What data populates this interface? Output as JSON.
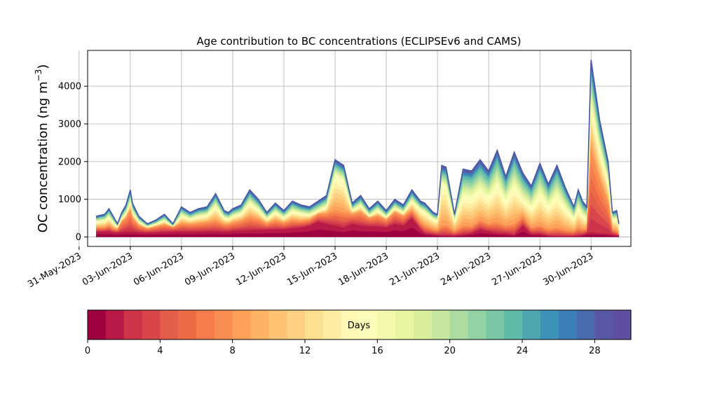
{
  "chart_data": {
    "type": "area",
    "title": "Age contribution to BC concentrations (ECLIPSEv6 and CAMS)",
    "ylabel_text": "OC concentration (ng m",
    "ylabel_sup": "−3",
    "ylabel_close": ")",
    "xlabel": "",
    "ylim": [
      -250,
      4950
    ],
    "xlim": [
      "2023-05-31T12:00",
      "2023-07-02T08:00"
    ],
    "yticks": [
      0,
      1000,
      2000,
      3000,
      4000
    ],
    "xticks": [
      {
        "date": "2023-05-31",
        "label": "31-May-2023"
      },
      {
        "date": "2023-06-03",
        "label": "03-Jun-2023"
      },
      {
        "date": "2023-06-06",
        "label": "06-Jun-2023"
      },
      {
        "date": "2023-06-09",
        "label": "09-Jun-2023"
      },
      {
        "date": "2023-06-12",
        "label": "12-Jun-2023"
      },
      {
        "date": "2023-06-15",
        "label": "15-Jun-2023"
      },
      {
        "date": "2023-06-18",
        "label": "18-Jun-2023"
      },
      {
        "date": "2023-06-21",
        "label": "21-Jun-2023"
      },
      {
        "date": "2023-06-24",
        "label": "24-Jun-2023"
      },
      {
        "date": "2023-06-27",
        "label": "27-Jun-2023"
      },
      {
        "date": "2023-06-30",
        "label": "30-Jun-2023"
      }
    ],
    "grid": true,
    "stacking": "cumulative by age (days 0 to 30)",
    "total": {
      "x": [
        "2023-06-01T00:00",
        "2023-06-01T12:00",
        "2023-06-01T18:00",
        "2023-06-02T00:00",
        "2023-06-02T06:00",
        "2023-06-02T12:00",
        "2023-06-02T18:00",
        "2023-06-03T00:00",
        "2023-06-03T03:00",
        "2023-06-03T12:00",
        "2023-06-04T00:00",
        "2023-06-04T12:00",
        "2023-06-05T00:00",
        "2023-06-05T12:00",
        "2023-06-06T00:00",
        "2023-06-06T12:00",
        "2023-06-07T00:00",
        "2023-06-07T12:00",
        "2023-06-08T00:00",
        "2023-06-08T12:00",
        "2023-06-08T18:00",
        "2023-06-09T00:00",
        "2023-06-09T12:00",
        "2023-06-10T00:00",
        "2023-06-10T12:00",
        "2023-06-11T00:00",
        "2023-06-11T12:00",
        "2023-06-12T00:00",
        "2023-06-12T12:00",
        "2023-06-13T00:00",
        "2023-06-13T12:00",
        "2023-06-14T00:00",
        "2023-06-14T12:00",
        "2023-06-15T00:00",
        "2023-06-15T12:00",
        "2023-06-16T00:00",
        "2023-06-16T12:00",
        "2023-06-17T00:00",
        "2023-06-17T12:00",
        "2023-06-18T00:00",
        "2023-06-18T12:00",
        "2023-06-19T00:00",
        "2023-06-19T12:00",
        "2023-06-20T00:00",
        "2023-06-20T06:00",
        "2023-06-20T18:00",
        "2023-06-21T00:00",
        "2023-06-21T06:00",
        "2023-06-21T12:00",
        "2023-06-22T00:00",
        "2023-06-22T12:00",
        "2023-06-23T00:00",
        "2023-06-23T12:00",
        "2023-06-24T00:00",
        "2023-06-24T12:00",
        "2023-06-25T00:00",
        "2023-06-25T12:00",
        "2023-06-26T00:00",
        "2023-06-26T12:00",
        "2023-06-27T00:00",
        "2023-06-27T12:00",
        "2023-06-28T00:00",
        "2023-06-28T12:00",
        "2023-06-29T00:00",
        "2023-06-29T06:00",
        "2023-06-29T12:00",
        "2023-06-29T18:00",
        "2023-06-30T00:00",
        "2023-06-30T12:00",
        "2023-07-01T00:00",
        "2023-07-01T06:00",
        "2023-07-01T12:00",
        "2023-07-01T15:00"
      ],
      "y": [
        550,
        600,
        750,
        550,
        350,
        650,
        850,
        1250,
        900,
        550,
        350,
        450,
        600,
        350,
        800,
        650,
        750,
        800,
        1150,
        700,
        650,
        750,
        850,
        1250,
        1000,
        650,
        900,
        700,
        950,
        850,
        800,
        950,
        1100,
        2050,
        1900,
        900,
        1100,
        750,
        950,
        700,
        1000,
        850,
        1250,
        950,
        900,
        650,
        600,
        1900,
        1850,
        600,
        1800,
        1750,
        2050,
        1750,
        2300,
        1600,
        2250,
        1700,
        1350,
        1950,
        1400,
        1900,
        1300,
        800,
        1250,
        950,
        800,
        4700,
        3100,
        2000,
        650,
        700,
        350
      ]
    },
    "total_note": "",
    "bands": {
      "0_to_2d_days": [
        140,
        140,
        150,
        120,
        110,
        130,
        140,
        140,
        140,
        120,
        110,
        120,
        130,
        140,
        140,
        140,
        140,
        150,
        150,
        140,
        140,
        160,
        170,
        180,
        180,
        190,
        200,
        200,
        230,
        250,
        300,
        400,
        350,
        300,
        250,
        350,
        300,
        280,
        280,
        250,
        350,
        300,
        500,
        200,
        100,
        60,
        50,
        40,
        40,
        30,
        60,
        100,
        200,
        150,
        100,
        100,
        50,
        300,
        80,
        80,
        30,
        20,
        20,
        20,
        30,
        50,
        100,
        120,
        100,
        80,
        60,
        40,
        30
      ],
      "to_8d_days": [
        240,
        250,
        300,
        220,
        200,
        400,
        500,
        700,
        500,
        300,
        220,
        270,
        320,
        260,
        350,
        330,
        350,
        380,
        420,
        330,
        330,
        370,
        420,
        520,
        460,
        350,
        430,
        370,
        440,
        420,
        450,
        600,
        620,
        700,
        650,
        600,
        650,
        500,
        550,
        450,
        650,
        550,
        700,
        400,
        300,
        200,
        180,
        300,
        320,
        150,
        300,
        280,
        450,
        350,
        400,
        300,
        350,
        550,
        250,
        300,
        200,
        250,
        180,
        150,
        250,
        200,
        200,
        2300,
        1500,
        900,
        200,
        150,
        80
      ],
      "to_16d_days": [
        400,
        430,
        520,
        380,
        260,
        480,
        620,
        900,
        650,
        400,
        260,
        330,
        430,
        260,
        560,
        470,
        540,
        570,
        820,
        500,
        470,
        540,
        610,
        900,
        720,
        470,
        650,
        500,
        680,
        610,
        580,
        680,
        790,
        1650,
        1500,
        700,
        830,
        550,
        700,
        520,
        760,
        630,
        950,
        720,
        660,
        470,
        430,
        1400,
        1350,
        430,
        1100,
        1050,
        1250,
        1050,
        1400,
        950,
        1350,
        1000,
        790,
        1150,
        820,
        1100,
        760,
        480,
        750,
        570,
        480,
        3500,
        2300,
        1450,
        450,
        480,
        230
      ],
      "to_24d_days": [
        500,
        545,
        680,
        495,
        315,
        590,
        770,
        1130,
        815,
        495,
        315,
        405,
        540,
        315,
        720,
        585,
        675,
        720,
        1040,
        630,
        585,
        675,
        765,
        1130,
        900,
        585,
        810,
        630,
        860,
        765,
        720,
        860,
        995,
        1910,
        1760,
        810,
        995,
        675,
        860,
        630,
        900,
        765,
        1130,
        860,
        810,
        585,
        540,
        1720,
        1670,
        540,
        1600,
        1550,
        1820,
        1550,
        2050,
        1420,
        2000,
        1510,
        1200,
        1740,
        1240,
        1690,
        1150,
        710,
        1120,
        850,
        710,
        4300,
        2850,
        1820,
        590,
        630,
        315
      ]
    },
    "colorbar": {
      "label": "Days",
      "min": 0,
      "max": 30,
      "ticks": [
        0,
        4,
        8,
        12,
        16,
        20,
        24,
        28
      ],
      "colors": [
        "#9e0142",
        "#b91946",
        "#cd3349",
        "#d8464c",
        "#e45c4a",
        "#ee6a45",
        "#f67d4b",
        "#f98e52",
        "#fca05a",
        "#fdb265",
        "#fdc372",
        "#fed182",
        "#fee091",
        "#feeda2",
        "#fff9b5",
        "#fbfdb9",
        "#f3faad",
        "#e8f5a1",
        "#d9ef9b",
        "#c4e69e",
        "#acdca1",
        "#93d2a4",
        "#7ac6a5",
        "#62baa8",
        "#4ea6b0",
        "#3d92b8",
        "#3c7fb8",
        "#4a6bae",
        "#5a58a4",
        "#5e4fa2"
      ]
    },
    "outline_color": "#4a59a7"
  }
}
